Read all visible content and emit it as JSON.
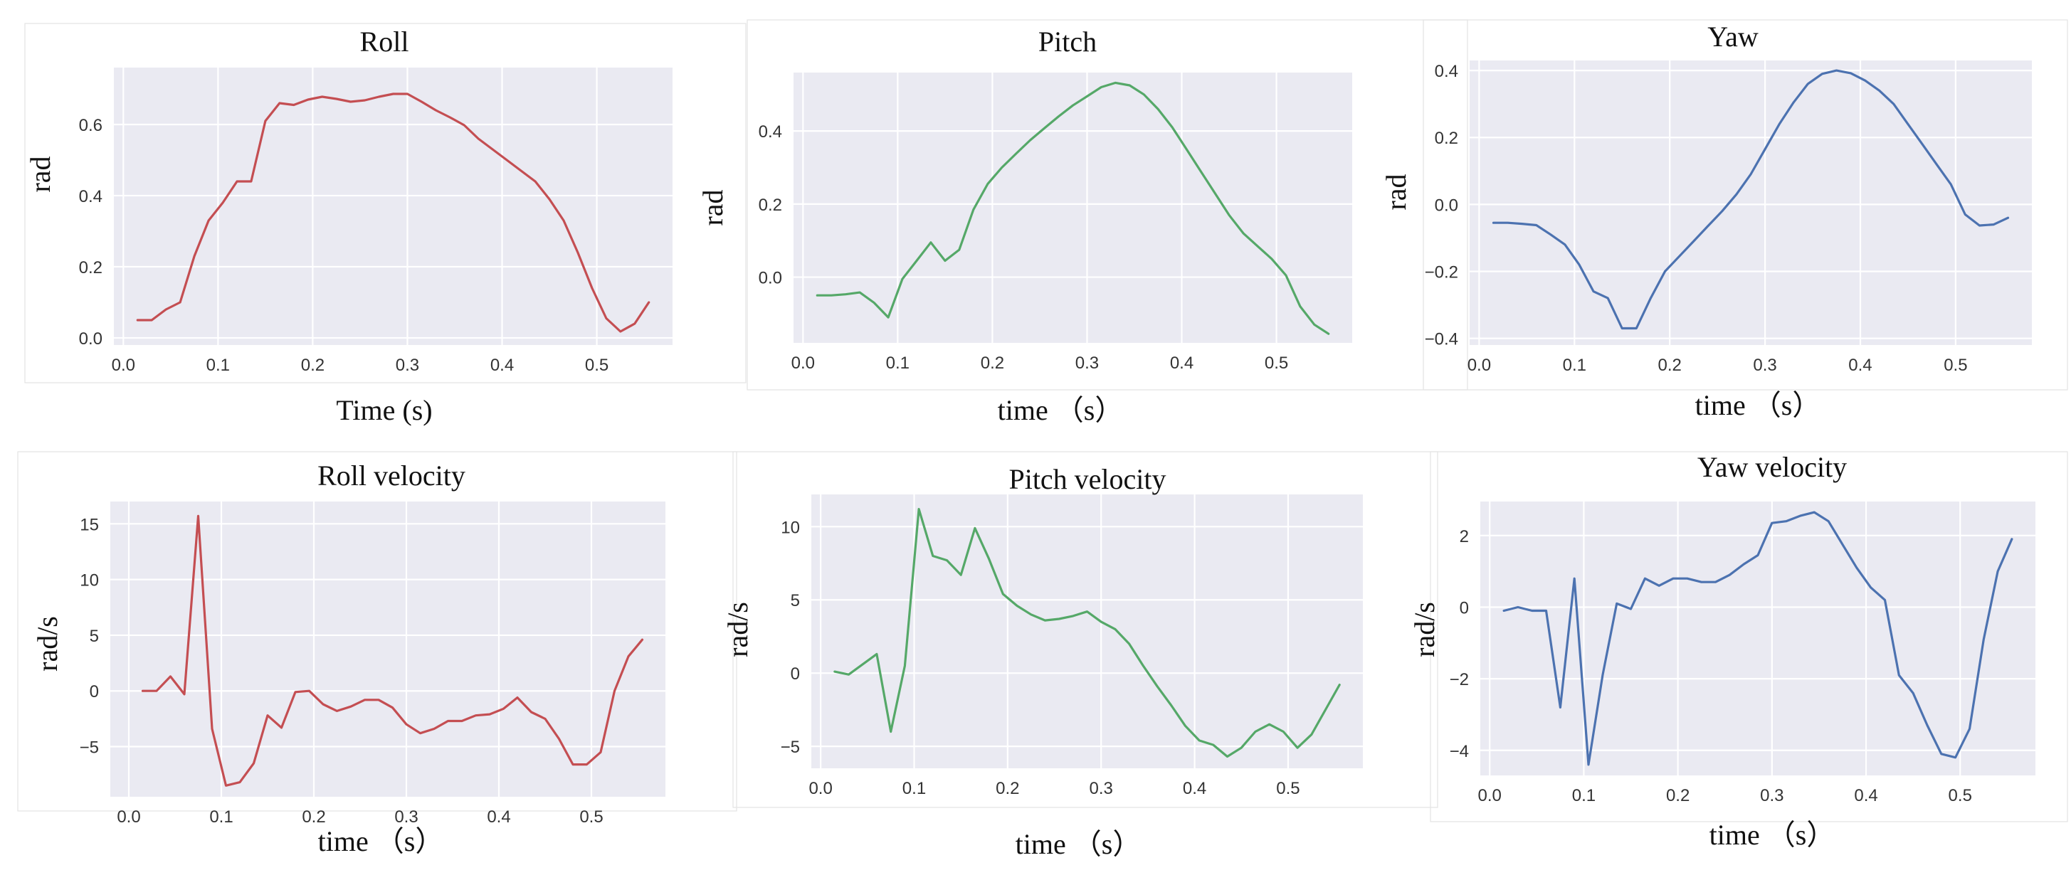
{
  "chart_data": [
    {
      "type": "line",
      "title": "Roll",
      "xlabel": "Time (s)",
      "ylabel": "rad",
      "color": "#c44e52",
      "xlim": [
        -0.01,
        0.58
      ],
      "ylim": [
        -0.02,
        0.76
      ],
      "xticks": [
        0.0,
        0.1,
        0.2,
        0.3,
        0.4,
        0.5
      ],
      "xtick_labels": [
        "0.0",
        "0.1",
        "0.2",
        "0.3",
        "0.4",
        "0.5"
      ],
      "yticks": [
        0.0,
        0.2,
        0.4,
        0.6
      ],
      "ytick_labels": [
        "0.0",
        "0.2",
        "0.4",
        "0.6"
      ],
      "x": [
        0.015,
        0.03,
        0.045,
        0.06,
        0.075,
        0.09,
        0.105,
        0.12,
        0.135,
        0.15,
        0.165,
        0.18,
        0.195,
        0.21,
        0.225,
        0.24,
        0.255,
        0.27,
        0.285,
        0.3,
        0.315,
        0.33,
        0.345,
        0.36,
        0.375,
        0.39,
        0.405,
        0.42,
        0.435,
        0.45,
        0.465,
        0.48,
        0.495,
        0.51,
        0.525,
        0.54,
        0.555
      ],
      "y": [
        0.05,
        0.05,
        0.08,
        0.1,
        0.23,
        0.33,
        0.38,
        0.44,
        0.44,
        0.61,
        0.66,
        0.655,
        0.67,
        0.678,
        0.672,
        0.664,
        0.668,
        0.678,
        0.686,
        0.686,
        0.664,
        0.64,
        0.62,
        0.598,
        0.56,
        0.53,
        0.5,
        0.47,
        0.44,
        0.39,
        0.33,
        0.24,
        0.14,
        0.055,
        0.018,
        0.04,
        0.1
      ]
    },
    {
      "type": "line",
      "title": "Pitch",
      "xlabel": "time （s）",
      "ylabel": "rad",
      "color": "#55a868",
      "xlim": [
        -0.01,
        0.58
      ],
      "ylim": [
        -0.18,
        0.56
      ],
      "xticks": [
        0.0,
        0.1,
        0.2,
        0.3,
        0.4,
        0.5
      ],
      "xtick_labels": [
        "0.0",
        "0.1",
        "0.2",
        "0.3",
        "0.4",
        "0.5"
      ],
      "yticks": [
        0.0,
        0.2,
        0.4
      ],
      "ytick_labels": [
        "0.0",
        "0.2",
        "0.4"
      ],
      "x": [
        0.015,
        0.03,
        0.045,
        0.06,
        0.075,
        0.09,
        0.105,
        0.12,
        0.135,
        0.15,
        0.165,
        0.18,
        0.195,
        0.21,
        0.225,
        0.24,
        0.255,
        0.27,
        0.285,
        0.3,
        0.315,
        0.33,
        0.345,
        0.36,
        0.375,
        0.39,
        0.405,
        0.42,
        0.435,
        0.45,
        0.465,
        0.48,
        0.495,
        0.51,
        0.525,
        0.54,
        0.555
      ],
      "y": [
        -0.05,
        -0.05,
        -0.047,
        -0.042,
        -0.07,
        -0.11,
        -0.005,
        0.045,
        0.095,
        0.045,
        0.075,
        0.185,
        0.255,
        0.3,
        0.338,
        0.375,
        0.408,
        0.44,
        0.47,
        0.495,
        0.52,
        0.532,
        0.525,
        0.5,
        0.46,
        0.41,
        0.35,
        0.29,
        0.23,
        0.17,
        0.12,
        0.085,
        0.05,
        0.005,
        -0.08,
        -0.13,
        -0.155
      ]
    },
    {
      "type": "line",
      "title": "Yaw",
      "xlabel": "time （s）",
      "ylabel": "rad",
      "color": "#4c72b0",
      "xlim": [
        -0.01,
        0.58
      ],
      "ylim": [
        -0.42,
        0.43
      ],
      "xticks": [
        0.0,
        0.1,
        0.2,
        0.3,
        0.4,
        0.5
      ],
      "xtick_labels": [
        "0.0",
        "0.1",
        "0.2",
        "0.3",
        "0.4",
        "0.5"
      ],
      "yticks": [
        -0.4,
        -0.2,
        0.0,
        0.2,
        0.4
      ],
      "ytick_labels": [
        "−0.4",
        "−0.2",
        "0.0",
        "0.2",
        "0.4"
      ],
      "x": [
        0.015,
        0.03,
        0.045,
        0.06,
        0.075,
        0.09,
        0.105,
        0.12,
        0.135,
        0.15,
        0.165,
        0.18,
        0.195,
        0.21,
        0.225,
        0.24,
        0.255,
        0.27,
        0.285,
        0.3,
        0.315,
        0.33,
        0.345,
        0.36,
        0.375,
        0.39,
        0.405,
        0.42,
        0.435,
        0.45,
        0.465,
        0.48,
        0.495,
        0.51,
        0.525,
        0.54,
        0.555
      ],
      "y": [
        -0.055,
        -0.055,
        -0.058,
        -0.062,
        -0.09,
        -0.12,
        -0.18,
        -0.26,
        -0.28,
        -0.37,
        -0.37,
        -0.28,
        -0.2,
        -0.155,
        -0.11,
        -0.065,
        -0.02,
        0.03,
        0.09,
        0.165,
        0.24,
        0.305,
        0.36,
        0.39,
        0.4,
        0.392,
        0.37,
        0.34,
        0.3,
        0.24,
        0.18,
        0.12,
        0.06,
        -0.03,
        -0.063,
        -0.06,
        -0.04
      ]
    },
    {
      "type": "line",
      "title": "Roll velocity",
      "xlabel": "time （s）",
      "ylabel": "rad/s",
      "color": "#c44e52",
      "xlim": [
        -0.02,
        0.58
      ],
      "ylim": [
        -9.5,
        17.0
      ],
      "xticks": [
        0.0,
        0.1,
        0.2,
        0.3,
        0.4,
        0.5
      ],
      "xtick_labels": [
        "0.0",
        "0.1",
        "0.2",
        "0.3",
        "0.4",
        "0.5"
      ],
      "yticks": [
        -5,
        0,
        5,
        10,
        15
      ],
      "ytick_labels": [
        "−5",
        "0",
        "5",
        "10",
        "15"
      ],
      "x": [
        0.015,
        0.03,
        0.045,
        0.06,
        0.075,
        0.09,
        0.105,
        0.12,
        0.135,
        0.15,
        0.165,
        0.18,
        0.195,
        0.21,
        0.225,
        0.24,
        0.255,
        0.27,
        0.285,
        0.3,
        0.315,
        0.33,
        0.345,
        0.36,
        0.375,
        0.39,
        0.405,
        0.42,
        0.435,
        0.45,
        0.465,
        0.48,
        0.495,
        0.51,
        0.525,
        0.54,
        0.555
      ],
      "y": [
        0.0,
        0.0,
        1.3,
        -0.3,
        15.7,
        -3.4,
        -8.5,
        -8.2,
        -6.5,
        -2.2,
        -3.3,
        -0.1,
        0.0,
        -1.2,
        -1.8,
        -1.4,
        -0.8,
        -0.8,
        -1.5,
        -3.0,
        -3.8,
        -3.4,
        -2.7,
        -2.7,
        -2.2,
        -2.1,
        -1.6,
        -0.6,
        -1.9,
        -2.5,
        -4.3,
        -6.6,
        -6.6,
        -5.5,
        0.0,
        3.1,
        4.6
      ]
    },
    {
      "type": "line",
      "title": "Pitch velocity",
      "xlabel": "time （s）",
      "ylabel": "rad/s",
      "color": "#55a868",
      "xlim": [
        -0.01,
        0.58
      ],
      "ylim": [
        -6.5,
        12.2
      ],
      "xticks": [
        0.0,
        0.1,
        0.2,
        0.3,
        0.4,
        0.5
      ],
      "xtick_labels": [
        "0.0",
        "0.1",
        "0.2",
        "0.3",
        "0.4",
        "0.5"
      ],
      "yticks": [
        -5,
        0,
        5,
        10
      ],
      "ytick_labels": [
        "−5",
        "0",
        "5",
        "10"
      ],
      "x": [
        0.015,
        0.03,
        0.045,
        0.06,
        0.075,
        0.09,
        0.105,
        0.12,
        0.135,
        0.15,
        0.165,
        0.18,
        0.195,
        0.21,
        0.225,
        0.24,
        0.255,
        0.27,
        0.285,
        0.3,
        0.315,
        0.33,
        0.345,
        0.36,
        0.375,
        0.39,
        0.405,
        0.42,
        0.435,
        0.45,
        0.465,
        0.48,
        0.495,
        0.51,
        0.525,
        0.54,
        0.555
      ],
      "y": [
        0.1,
        -0.1,
        0.6,
        1.3,
        -4.0,
        0.5,
        11.2,
        8.0,
        7.7,
        6.7,
        9.9,
        7.8,
        5.4,
        4.6,
        4.0,
        3.6,
        3.7,
        3.9,
        4.2,
        3.5,
        3.0,
        2.0,
        0.5,
        -0.9,
        -2.2,
        -3.6,
        -4.6,
        -4.9,
        -5.7,
        -5.1,
        -4.0,
        -3.5,
        -4.0,
        -5.1,
        -4.2,
        -2.5,
        -0.8
      ]
    },
    {
      "type": "line",
      "title": "Yaw velocity",
      "xlabel": "time （s）",
      "ylabel": "rad/s",
      "color": "#4c72b0",
      "xlim": [
        -0.01,
        0.58
      ],
      "ylim": [
        -4.7,
        2.95
      ],
      "xticks": [
        0.0,
        0.1,
        0.2,
        0.3,
        0.4,
        0.5
      ],
      "xtick_labels": [
        "0.0",
        "0.1",
        "0.2",
        "0.3",
        "0.4",
        "0.5"
      ],
      "yticks": [
        -4,
        -2,
        0,
        2
      ],
      "ytick_labels": [
        "−4",
        "−2",
        "0",
        "2"
      ],
      "x": [
        0.015,
        0.03,
        0.045,
        0.06,
        0.075,
        0.09,
        0.105,
        0.12,
        0.135,
        0.15,
        0.165,
        0.18,
        0.195,
        0.21,
        0.225,
        0.24,
        0.255,
        0.27,
        0.285,
        0.3,
        0.315,
        0.33,
        0.345,
        0.36,
        0.375,
        0.39,
        0.405,
        0.42,
        0.435,
        0.45,
        0.465,
        0.48,
        0.495,
        0.51,
        0.525,
        0.54,
        0.555
      ],
      "y": [
        -0.1,
        0.0,
        -0.1,
        -0.1,
        -2.8,
        0.8,
        -4.4,
        -1.9,
        0.1,
        -0.05,
        0.8,
        0.6,
        0.8,
        0.8,
        0.7,
        0.7,
        0.9,
        1.2,
        1.45,
        2.35,
        2.4,
        2.55,
        2.65,
        2.4,
        1.75,
        1.1,
        0.55,
        0.2,
        -1.9,
        -2.4,
        -3.3,
        -4.1,
        -4.2,
        -3.4,
        -0.9,
        1.0,
        1.9
      ]
    }
  ]
}
